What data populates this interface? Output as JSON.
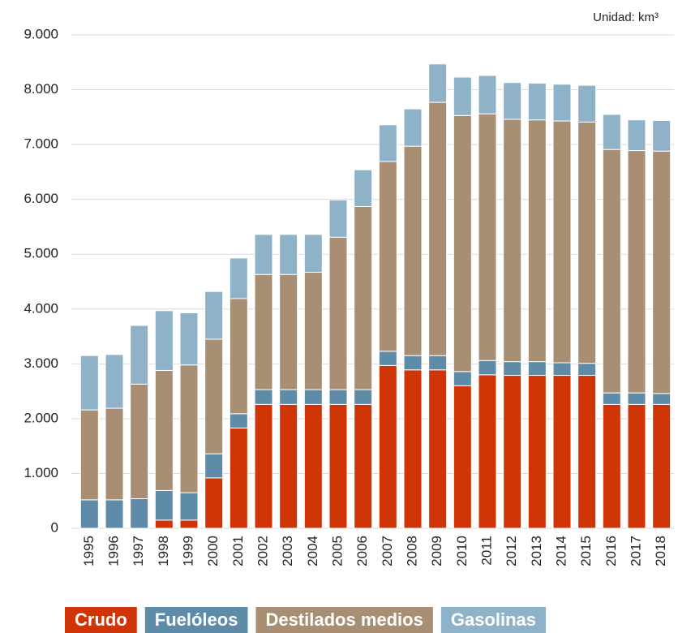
{
  "chart_data": {
    "type": "bar",
    "stacked": true,
    "unit_note": "Unidad: km³",
    "categories": [
      "1995",
      "1996",
      "1997",
      "1998",
      "1999",
      "2000",
      "2001",
      "2002",
      "2003",
      "2004",
      "2005",
      "2006",
      "2007",
      "2008",
      "2009",
      "2010",
      "2011",
      "2012",
      "2013",
      "2014",
      "2015",
      "2016",
      "2017",
      "2018"
    ],
    "series": [
      {
        "name": "Crudo",
        "color": "#d03508",
        "values": [
          0,
          0,
          0,
          150,
          150,
          920,
          1830,
          2260,
          2260,
          2260,
          2260,
          2260,
          2970,
          2890,
          2890,
          2600,
          2800,
          2790,
          2790,
          2790,
          2790,
          2260,
          2260,
          2260
        ]
      },
      {
        "name": "Fuelóleos",
        "color": "#5e8ca8",
        "values": [
          520,
          520,
          540,
          540,
          500,
          440,
          260,
          270,
          270,
          270,
          270,
          270,
          260,
          260,
          260,
          260,
          260,
          250,
          250,
          230,
          220,
          210,
          210,
          200
        ]
      },
      {
        "name": "Destilados medios",
        "color": "#a88f73",
        "values": [
          1640,
          1670,
          2090,
          2190,
          2330,
          2090,
          2100,
          2100,
          2100,
          2140,
          2780,
          3340,
          3460,
          3820,
          4620,
          4670,
          4500,
          4420,
          4410,
          4410,
          4400,
          4440,
          4420,
          4420
        ]
      },
      {
        "name": "Gasolinas",
        "color": "#8eb3c9",
        "values": [
          990,
          980,
          1070,
          1090,
          950,
          870,
          740,
          730,
          730,
          690,
          680,
          670,
          670,
          680,
          700,
          700,
          700,
          670,
          670,
          670,
          670,
          640,
          560,
          560
        ]
      }
    ],
    "ylim": [
      0,
      9000
    ],
    "yticks": [
      0,
      {
        "value": 1000,
        "label": "1.000"
      },
      {
        "value": 2000,
        "label": "2.000"
      },
      {
        "value": 3000,
        "label": "3.000"
      },
      {
        "value": 4000,
        "label": "4.000"
      },
      {
        "value": 5000,
        "label": "5.000"
      },
      {
        "value": 6000,
        "label": "6.000"
      },
      {
        "value": 7000,
        "label": "7.000"
      },
      {
        "value": 8000,
        "label": "8.000"
      },
      {
        "value": 9000,
        "label": "9.000"
      }
    ],
    "grid": true,
    "legend": "bottom"
  }
}
